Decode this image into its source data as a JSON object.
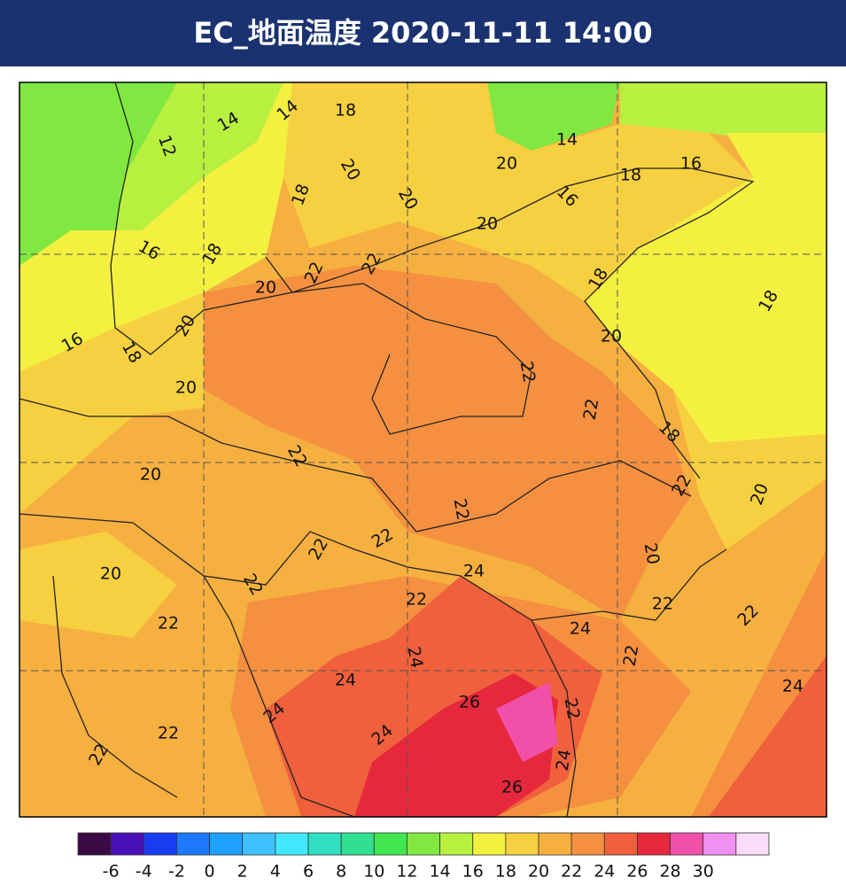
{
  "header": {
    "title": "EC_地面温度  2020-11-11 14:00"
  },
  "map": {
    "contour_labels": [
      18,
      14,
      14,
      12,
      20,
      18,
      20,
      20,
      14,
      16,
      18,
      16,
      20,
      16,
      18,
      22,
      22,
      20,
      18,
      18,
      20,
      16,
      18,
      20,
      20,
      22,
      22,
      18,
      22,
      20,
      20,
      22,
      22,
      22,
      22,
      20,
      20,
      24,
      22,
      22,
      22,
      22,
      22,
      24,
      22,
      24,
      24,
      24,
      24,
      26,
      22,
      22,
      24,
      22,
      24,
      26
    ]
  },
  "colorbar": {
    "colors": [
      "#3a0a45",
      "#4a10b8",
      "#1a3cf0",
      "#1e78ff",
      "#1ea0ff",
      "#40c0ff",
      "#40e8ff",
      "#30e0c0",
      "#30e090",
      "#40e650",
      "#80e840",
      "#b8f040",
      "#f4f040",
      "#f6d040",
      "#f6b040",
      "#f49040",
      "#f0603c",
      "#e6283c",
      "#f050a8",
      "#f090f0",
      "#fadcfa"
    ],
    "ticks": [
      -6,
      -4,
      -2,
      0,
      2,
      4,
      6,
      8,
      10,
      12,
      14,
      16,
      18,
      20,
      22,
      24,
      26,
      28,
      30
    ]
  }
}
